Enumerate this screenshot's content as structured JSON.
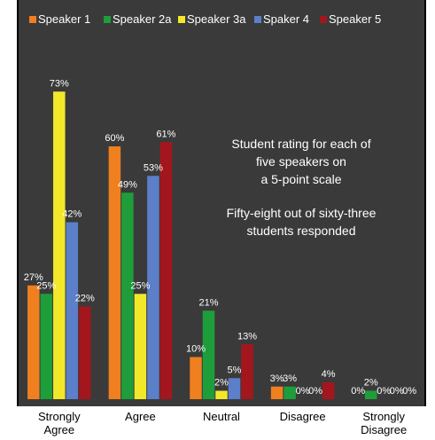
{
  "chart_data": {
    "type": "bar",
    "categories": [
      "Strongly Agree",
      "Agree",
      "Neutral",
      "Disagree",
      "Strongly Disagree"
    ],
    "category_lines": [
      [
        "Strongly",
        "Agree"
      ],
      [
        "Agree"
      ],
      [
        "Neutral"
      ],
      [
        "Disagree"
      ],
      [
        "Strongly",
        "Disagree"
      ]
    ],
    "series": [
      {
        "name": "Speaker 1",
        "color": "#F07F1F",
        "values": [
          27,
          60,
          10,
          3,
          0
        ],
        "labels": [
          "27%",
          "60%",
          "10%",
          "3%",
          "0%"
        ]
      },
      {
        "name": "Speaker 2a",
        "color": "#1E9E3A",
        "values": [
          25,
          49,
          21,
          3,
          2
        ],
        "labels": [
          "25%",
          "49%",
          "21%",
          "3%",
          "2%"
        ]
      },
      {
        "name": "Speaker 3a",
        "color": "#F2E829",
        "values": [
          73,
          25,
          2,
          0,
          0
        ],
        "labels": [
          "73%",
          "25%",
          "2%",
          "0%",
          "0%"
        ]
      },
      {
        "name": "Spaker 4",
        "color": "#5B7FC8",
        "values": [
          42,
          53,
          5,
          0,
          0
        ],
        "labels": [
          "42%",
          "53%",
          "5%",
          "0%",
          "0%"
        ]
      },
      {
        "name": "Speaker 5",
        "color": "#A4161D",
        "values": [
          22,
          61,
          13,
          4,
          0
        ],
        "labels": [
          "22%",
          "61%",
          "13%",
          "4%",
          "0%"
        ]
      }
    ],
    "ylim": [
      0,
      80
    ],
    "grid": false,
    "legend_position": "top",
    "background": "#3A3A3A",
    "annotations": [
      [
        "Student rating for each of",
        "five speakers on",
        "a 5-point scale"
      ],
      [
        "Fifty-eight out of sixty-three",
        "students responded"
      ]
    ]
  }
}
